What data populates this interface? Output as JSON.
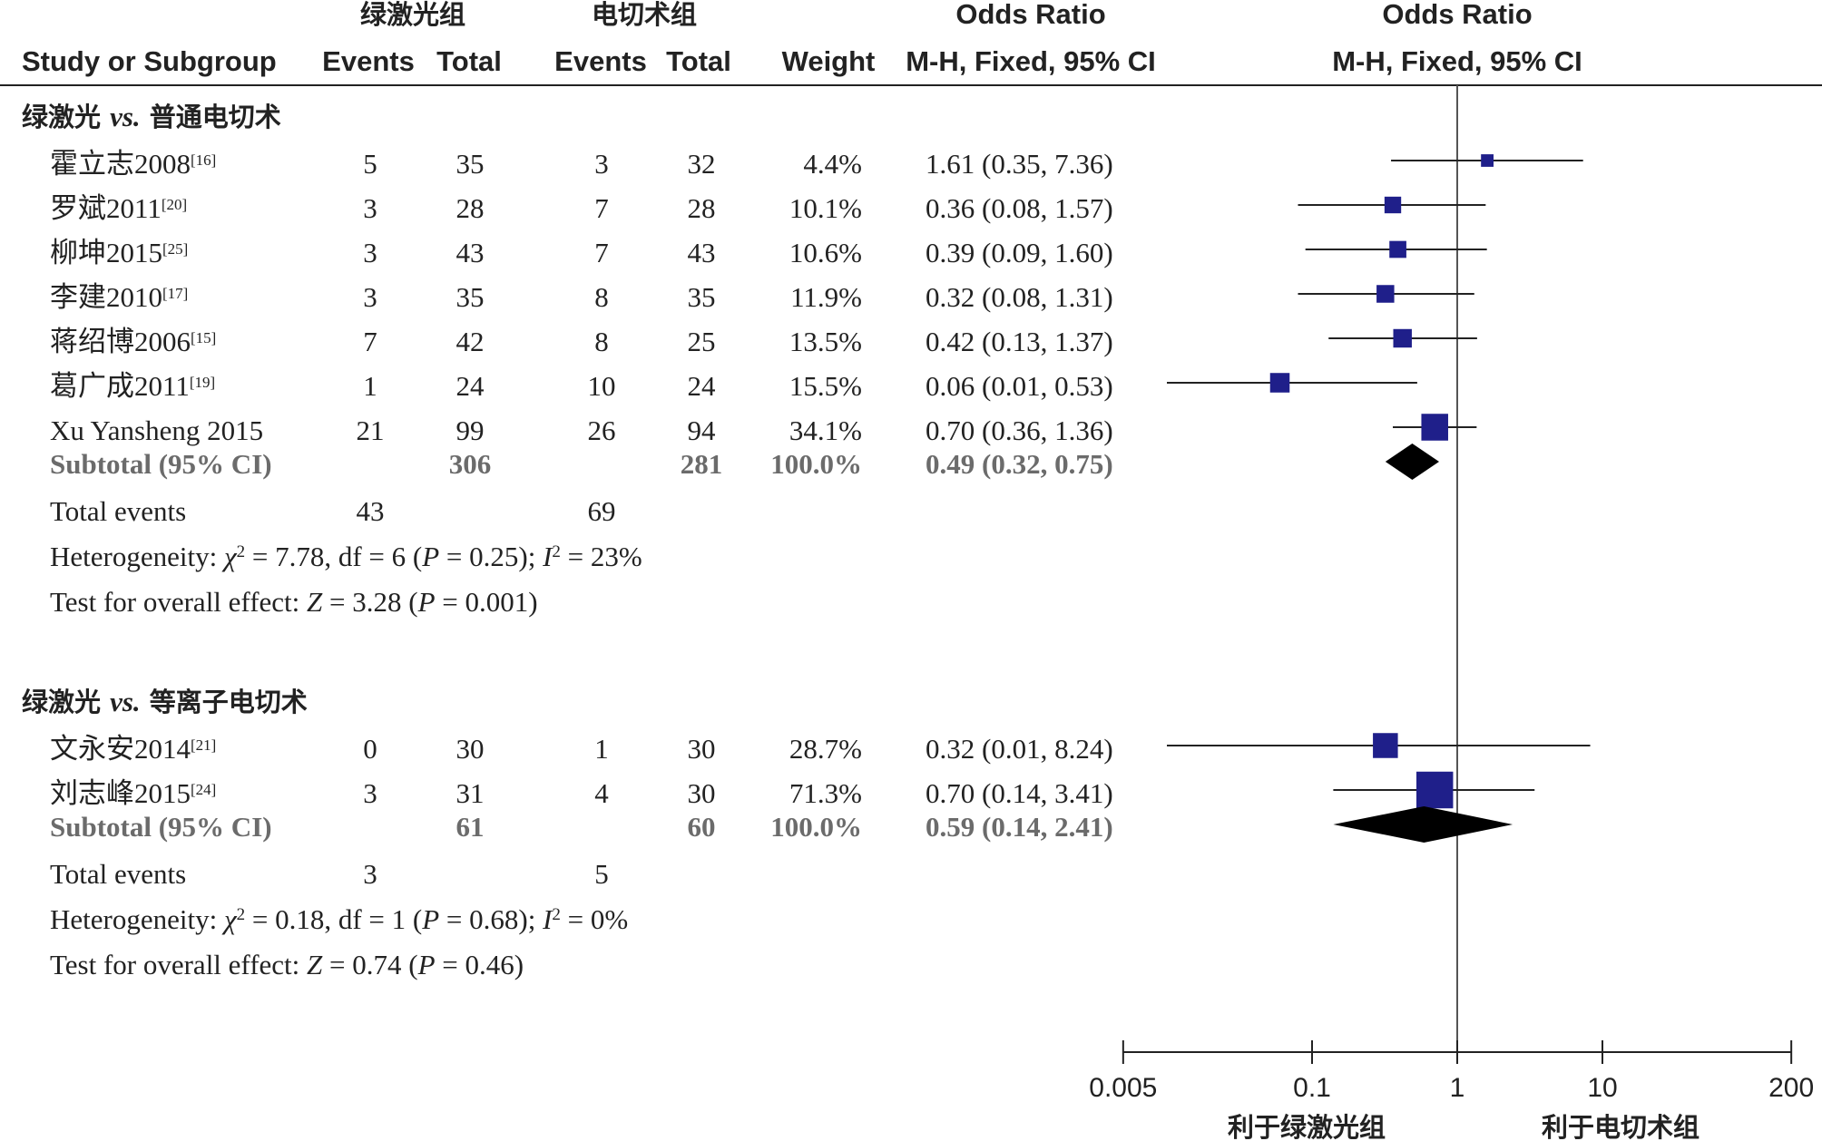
{
  "header": {
    "group_a": "绿激光组",
    "group_b": "电切术组",
    "or_left": "Odds Ratio",
    "or_right": "Odds Ratio",
    "study_col": "Study or Subgroup",
    "events_a": "Events",
    "total_a": "Total",
    "events_b": "Events",
    "total_b": "Total",
    "weight": "Weight",
    "method_left": "M-H, Fixed, 95% CI",
    "method_right": "M-H, Fixed, 95% CI"
  },
  "colors": {
    "marker": "#1f1f8a",
    "diamond": "#000000",
    "line": "#222222",
    "subtotal_text": "#6b6b6b"
  },
  "chart_data": {
    "type": "forest",
    "scale": "log",
    "xlim": [
      0.005,
      200
    ],
    "ticks": [
      "0.005",
      "0.1",
      "1",
      "10",
      "200"
    ],
    "xlabel_left": "利于绿激光组",
    "xlabel_right": "利于电切术组",
    "subgroups": [
      {
        "title_cn": "绿激光 ",
        "title_vs": "vs.",
        "title_rest": " 普通电切术",
        "studies": [
          {
            "name": "霍立志2008",
            "ref": "[16]",
            "events_a": "5",
            "total_a": "35",
            "events_b": "3",
            "total_b": "32",
            "weight": "4.4%",
            "ci_text": "1.61 (0.35, 7.36)",
            "or": 1.61,
            "lo": 0.35,
            "hi": 7.36,
            "w": 4.4
          },
          {
            "name": "罗斌2011",
            "ref": "[20]",
            "events_a": "3",
            "total_a": "28",
            "events_b": "7",
            "total_b": "28",
            "weight": "10.1%",
            "ci_text": "0.36 (0.08, 1.57)",
            "or": 0.36,
            "lo": 0.08,
            "hi": 1.57,
            "w": 10.1
          },
          {
            "name": "柳坤2015",
            "ref": "[25]",
            "events_a": "3",
            "total_a": "43",
            "events_b": "7",
            "total_b": "43",
            "weight": "10.6%",
            "ci_text": "0.39 (0.09, 1.60)",
            "or": 0.39,
            "lo": 0.09,
            "hi": 1.6,
            "w": 10.6
          },
          {
            "name": "李建2010",
            "ref": "[17]",
            "events_a": "3",
            "total_a": "35",
            "events_b": "8",
            "total_b": "35",
            "weight": "11.9%",
            "ci_text": "0.32 (0.08, 1.31)",
            "or": 0.32,
            "lo": 0.08,
            "hi": 1.31,
            "w": 11.9
          },
          {
            "name": "蒋绍博2006",
            "ref": "[15]",
            "events_a": "7",
            "total_a": "42",
            "events_b": "8",
            "total_b": "25",
            "weight": "13.5%",
            "ci_text": "0.42 (0.13, 1.37)",
            "or": 0.42,
            "lo": 0.13,
            "hi": 1.37,
            "w": 13.5
          },
          {
            "name": "葛广成2011",
            "ref": "[19]",
            "events_a": "1",
            "total_a": "24",
            "events_b": "10",
            "total_b": "24",
            "weight": "15.5%",
            "ci_text": "0.06 (0.01, 0.53)",
            "or": 0.06,
            "lo": 0.01,
            "hi": 0.53,
            "w": 15.5
          },
          {
            "name": "Xu Yansheng 2015",
            "ref": "",
            "events_a": "21",
            "total_a": "99",
            "events_b": "26",
            "total_b": "94",
            "weight": "34.1%",
            "ci_text": "0.70 (0.36, 1.36)",
            "or": 0.7,
            "lo": 0.36,
            "hi": 1.36,
            "w": 34.1
          }
        ],
        "subtotal": {
          "label": "Subtotal (95% CI)",
          "total_a": "306",
          "total_b": "281",
          "weight": "100.0%",
          "ci_text": "0.49 (0.32, 0.75)",
          "or": 0.49,
          "lo": 0.32,
          "hi": 0.75
        },
        "total_events": {
          "label": "Total events",
          "a": "43",
          "b": "69"
        },
        "heterogeneity": {
          "chi2": "7.78",
          "df": "6",
          "p": "0.25",
          "i2": "23%"
        },
        "overall": {
          "z": "3.28",
          "p": "0.001"
        }
      },
      {
        "title_cn": "绿激光 ",
        "title_vs": "vs.",
        "title_rest": " 等离子电切术",
        "studies": [
          {
            "name": "文永安2014",
            "ref": "[21]",
            "events_a": "0",
            "total_a": "30",
            "events_b": "1",
            "total_b": "30",
            "weight": "28.7%",
            "ci_text": "0.32 (0.01, 8.24)",
            "or": 0.32,
            "lo": 0.01,
            "hi": 8.24,
            "w": 28.7
          },
          {
            "name": "刘志峰2015",
            "ref": "[24]",
            "events_a": "3",
            "total_a": "31",
            "events_b": "4",
            "total_b": "30",
            "weight": "71.3%",
            "ci_text": "0.70 (0.14, 3.41)",
            "or": 0.7,
            "lo": 0.14,
            "hi": 3.41,
            "w": 71.3
          }
        ],
        "subtotal": {
          "label": "Subtotal (95% CI)",
          "total_a": "61",
          "total_b": "60",
          "weight": "100.0%",
          "ci_text": "0.59 (0.14, 2.41)",
          "or": 0.59,
          "lo": 0.14,
          "hi": 2.41
        },
        "total_events": {
          "label": "Total events",
          "a": "3",
          "b": "5"
        },
        "heterogeneity": {
          "chi2": "0.18",
          "df": "1",
          "p": "0.68",
          "i2": "0%"
        },
        "overall": {
          "z": "0.74",
          "p": "0.46"
        }
      }
    ]
  }
}
